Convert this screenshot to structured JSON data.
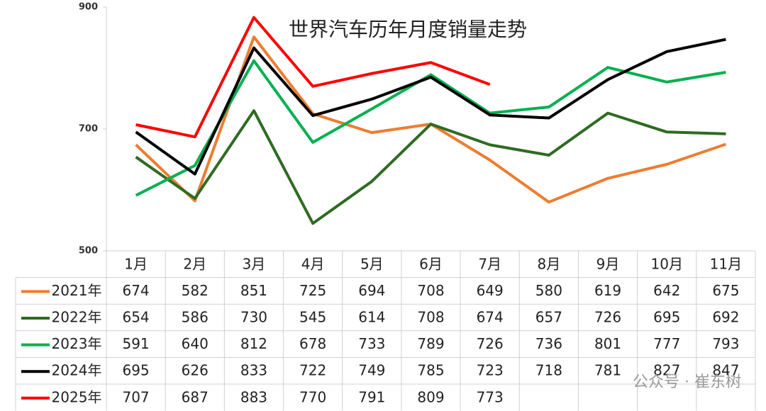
{
  "chart_data": {
    "type": "line",
    "title": "世界汽车历年月度销量走势",
    "categories": [
      "1月",
      "2月",
      "3月",
      "4月",
      "5月",
      "6月",
      "7月",
      "8月",
      "9月",
      "10月",
      "11月"
    ],
    "series": [
      {
        "name": "2021年",
        "color": "#ED7D31",
        "values": [
          674,
          582,
          851,
          725,
          694,
          708,
          649,
          580,
          619,
          642,
          675
        ]
      },
      {
        "name": "2022年",
        "color": "#2E6B22",
        "values": [
          654,
          586,
          730,
          545,
          614,
          708,
          674,
          657,
          726,
          695,
          692
        ]
      },
      {
        "name": "2023年",
        "color": "#00B050",
        "values": [
          591,
          640,
          812,
          678,
          733,
          789,
          726,
          736,
          801,
          777,
          793
        ]
      },
      {
        "name": "2024年",
        "color": "#000000",
        "values": [
          695,
          626,
          833,
          722,
          749,
          785,
          723,
          718,
          781,
          827,
          847
        ]
      },
      {
        "name": "2025年",
        "color": "#FF0000",
        "values": [
          707,
          687,
          883,
          770,
          791,
          809,
          773,
          null,
          null,
          null,
          null
        ]
      }
    ],
    "ylim": [
      500,
      900
    ],
    "yticks": [
      500,
      700,
      900
    ],
    "watermark": "公众号 · 崔东树"
  }
}
